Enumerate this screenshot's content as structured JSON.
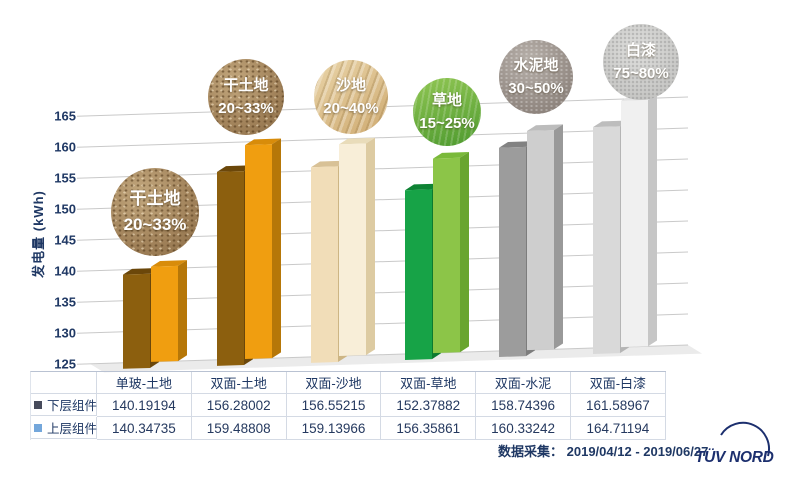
{
  "chart_data": {
    "type": "bar",
    "title": "",
    "ylabel": "发电量 (kWh)",
    "ylim": [
      125,
      165
    ],
    "ytick_step": 5,
    "grid": true,
    "legend_position": "table-left",
    "gridline_color": "#c9c9c9",
    "axis_text_color": "#1f3864",
    "floor_color": "#ebebeb",
    "categories": [
      "单玻-土地",
      "双面-土地",
      "双面-沙地",
      "双面-草地",
      "双面-水泥",
      "双面-白漆"
    ],
    "series": [
      {
        "name": "下层组件",
        "marker_color": "#474b5c",
        "values": [
          140.19194,
          156.28002,
          156.55215,
          152.37882,
          158.74396,
          161.58967
        ]
      },
      {
        "name": "上层组件",
        "marker_color": "#74a7db",
        "values": [
          140.34735,
          159.48808,
          159.13966,
          156.35861,
          160.33242,
          164.71194
        ]
      }
    ],
    "annotations": [
      {
        "label": "干土地",
        "value": "20~33%",
        "texture": "soil"
      },
      {
        "label": "干土地",
        "value": "20~33%",
        "texture": "soil"
      },
      {
        "label": "沙地",
        "value": "20~40%",
        "texture": "sand"
      },
      {
        "label": "草地",
        "value": "15~25%",
        "texture": "grass"
      },
      {
        "label": "水泥地",
        "value": "30~50%",
        "texture": "cement"
      },
      {
        "label": "白漆",
        "value": "75~80%",
        "texture": "paint"
      }
    ],
    "bar_colors": [
      {
        "lower": {
          "front": "#8c5f0e",
          "top": "#6b470a",
          "side": "#6b470a"
        },
        "upper": {
          "front": "#f09e10",
          "top": "#d88c0a",
          "side": "#b67708"
        }
      },
      {
        "lower": {
          "front": "#8c5f0e",
          "top": "#6b470a",
          "side": "#6b470a"
        },
        "upper": {
          "front": "#f09e10",
          "top": "#d88c0a",
          "side": "#b67708"
        }
      },
      {
        "lower": {
          "front": "#f1ddb8",
          "top": "#d8c196",
          "side": "#cdb584"
        },
        "upper": {
          "front": "#f8eed8",
          "top": "#e9dcba",
          "side": "#ddcba2"
        }
      },
      {
        "lower": {
          "front": "#17a347",
          "top": "#0e8334",
          "side": "#0c7a30"
        },
        "upper": {
          "front": "#8cc548",
          "top": "#7ab93a",
          "side": "#69a52f"
        }
      },
      {
        "lower": {
          "front": "#9c9c9c",
          "top": "#828282",
          "side": "#7d7d7d"
        },
        "upper": {
          "front": "#cecece",
          "top": "#bcbcbc",
          "side": "#999999"
        }
      },
      {
        "lower": {
          "front": "#d9d9d9",
          "top": "#bdbdbd",
          "side": "#b5b5b5"
        },
        "upper": {
          "front": "#f0f0f0",
          "top": "#e3e3e3",
          "side": "#c6c6c6"
        }
      }
    ]
  },
  "footer": {
    "label": "数据采集：",
    "dates": "2019/04/12 - 2019/06/27"
  },
  "logo": {
    "text": "TÜV NORD",
    "color": "#1c2f6e"
  }
}
